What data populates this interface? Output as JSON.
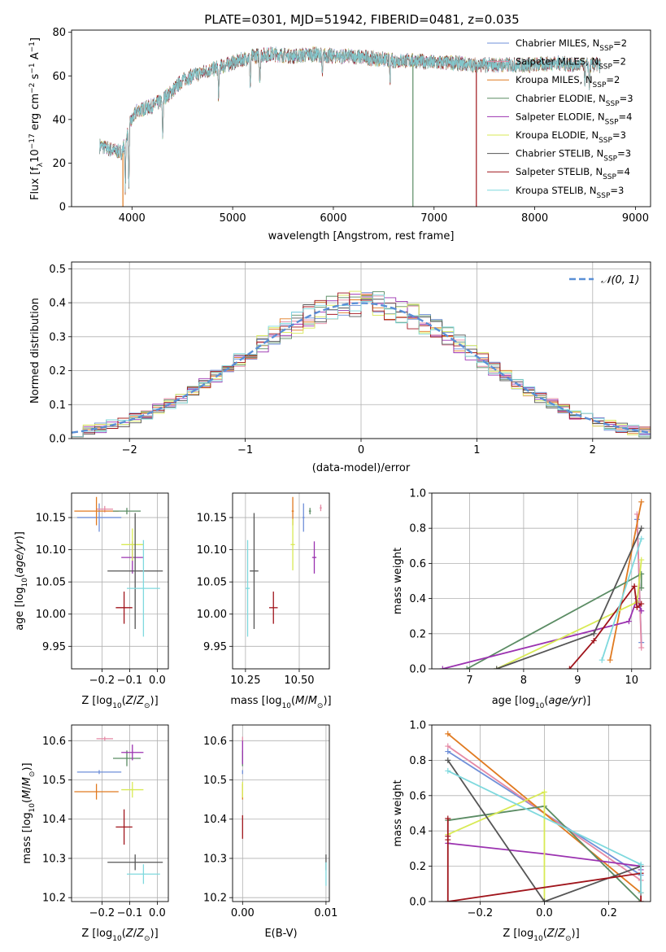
{
  "figure_title": "PLATE=0301, MJD=51942, FIBERID=0481, z=0.035",
  "colors": {
    "grid": "#b0b0b0",
    "normal_curve": "#5a8fd6",
    "models": [
      "#6f8fd8",
      "#e58aa5",
      "#e07a20",
      "#5b8c64",
      "#9b32b0",
      "#d8ea55",
      "#555555",
      "#a0151c",
      "#7fd9de"
    ]
  },
  "chart_data": [
    {
      "id": "spectrum",
      "type": "line",
      "title": "PLATE=0301, MJD=51942, FIBERID=0481, z=0.035",
      "xlabel": "wavelength [Angstrom, rest frame]",
      "ylabel": "Flux [f_λ 10^-17 erg cm^-2 s^-1 A^-1]",
      "xlim": [
        3400,
        9150
      ],
      "ylim": [
        0,
        81
      ],
      "xticks": [
        4000,
        5000,
        6000,
        7000,
        8000,
        9000
      ],
      "yticks": [
        0,
        20,
        40,
        60,
        80
      ],
      "grid": false,
      "legend_position": "top-right",
      "legend": [
        "Chabrier MILES, N_SSP=2",
        "Salpeter MILES, N_SSP=2",
        "Kroupa MILES, N_SSP=2",
        "Chabrier ELODIE, N_SSP=3",
        "Salpeter ELODIE, N_SSP=4",
        "Kroupa ELODIE, N_SSP=3",
        "Chabrier STELIB, N_SSP=3",
        "Salpeter STELIB, N_SSP=4",
        "Kroupa STELIB, N_SSP=3"
      ],
      "wavelength_range": [
        3680,
        8650
      ],
      "continuum": {
        "x": [
          3680,
          3800,
          3900,
          3980,
          4050,
          4200,
          4300,
          4400,
          4500,
          4600,
          4800,
          5000,
          5200,
          5400,
          5600,
          5800,
          6000,
          6200,
          6400,
          6600,
          6800,
          7000,
          7200,
          7400,
          7600,
          7800,
          8000,
          8200,
          8400,
          8650
        ],
        "y": [
          28,
          26,
          25,
          38,
          44,
          46,
          49,
          53,
          58,
          60,
          63,
          66,
          69,
          70,
          69,
          70,
          69,
          69,
          68,
          67,
          67,
          66,
          66,
          65,
          65,
          65,
          65,
          66,
          65,
          65
        ]
      },
      "dips": [
        {
          "x": 3934,
          "y": 8
        },
        {
          "x": 3969,
          "y": 10
        },
        {
          "x": 4305,
          "y": 32
        },
        {
          "x": 4861,
          "y": 50
        },
        {
          "x": 5175,
          "y": 55
        },
        {
          "x": 5270,
          "y": 58
        },
        {
          "x": 5890,
          "y": 60
        },
        {
          "x": 6563,
          "y": 58
        },
        {
          "x": 8498,
          "y": 58
        },
        {
          "x": 8542,
          "y": 56
        },
        {
          "x": 8662,
          "y": 57
        }
      ],
      "model_dropouts": [
        {
          "model": 2,
          "x": 3910,
          "to": 0
        },
        {
          "model": 3,
          "x": 6790,
          "to": 0
        },
        {
          "model": 7,
          "x": 7420,
          "to": 0
        }
      ]
    },
    {
      "id": "residuals",
      "type": "histogram",
      "xlabel": "(data-model)/error",
      "ylabel": "Normed distribution",
      "xlim": [
        -2.5,
        2.5
      ],
      "ylim": [
        0,
        0.52
      ],
      "xticks": [
        -2,
        -1,
        0,
        1,
        2
      ],
      "yticks": [
        0.0,
        0.1,
        0.2,
        0.3,
        0.4,
        0.5
      ],
      "grid": true,
      "legend_position": "top-right",
      "legend": [
        "𝒩(0, 1)"
      ],
      "bin_width": 0.1,
      "curve": "normal(0,1)"
    },
    {
      "id": "age_vs_Z",
      "type": "scatter",
      "xlabel": "Z [log10(Z/Z⊙)]",
      "ylabel": "age [log10(age/yr)]",
      "xlim": [
        -0.31,
        0.04
      ],
      "ylim": [
        9.915,
        10.188
      ],
      "xticks": [
        -0.2,
        -0.1,
        0.0
      ],
      "yticks": [
        9.95,
        10.0,
        10.05,
        10.1,
        10.15
      ],
      "grid": true,
      "points": [
        {
          "model": 0,
          "x": -0.21,
          "xerr": 0.08,
          "y": 10.15,
          "yerr": 0.022
        },
        {
          "model": 1,
          "x": -0.19,
          "xerr": 0.03,
          "y": 10.163,
          "yerr": 0.005
        },
        {
          "model": 2,
          "x": -0.22,
          "xerr": 0.08,
          "y": 10.16,
          "yerr": 0.022
        },
        {
          "model": 3,
          "x": -0.11,
          "xerr": 0.05,
          "y": 10.16,
          "yerr": 0.005
        },
        {
          "model": 4,
          "x": -0.09,
          "xerr": 0.04,
          "y": 10.088,
          "yerr": 0.025
        },
        {
          "model": 5,
          "x": -0.09,
          "xerr": 0.04,
          "y": 10.108,
          "yerr": 0.025
        },
        {
          "model": 6,
          "x": -0.08,
          "xerr": 0.1,
          "y": 10.067,
          "yerr": 0.09
        },
        {
          "model": 7,
          "x": -0.12,
          "xerr": 0.03,
          "y": 10.01,
          "yerr": 0.025
        },
        {
          "model": 8,
          "x": -0.05,
          "xerr": 0.06,
          "y": 10.04,
          "yerr": 0.075
        }
      ]
    },
    {
      "id": "age_vs_mass",
      "type": "scatter",
      "xlabel": "mass [log10(M/M⊙)]",
      "ylabel": "",
      "xlim": [
        10.19,
        10.64
      ],
      "ylim": [
        9.915,
        10.188
      ],
      "xticks": [
        10.25,
        10.5
      ],
      "yticks": [
        9.95,
        10.0,
        10.05,
        10.1,
        10.15
      ],
      "grid": true,
      "points": [
        {
          "model": 0,
          "x": 10.52,
          "xerr": 0.005,
          "y": 10.15,
          "yerr": 0.022
        },
        {
          "model": 1,
          "x": 10.6,
          "xerr": 0.005,
          "y": 10.165,
          "yerr": 0.005
        },
        {
          "model": 2,
          "x": 10.47,
          "xerr": 0.005,
          "y": 10.16,
          "yerr": 0.022
        },
        {
          "model": 3,
          "x": 10.55,
          "xerr": 0.005,
          "y": 10.16,
          "yerr": 0.005
        },
        {
          "model": 4,
          "x": 10.57,
          "xerr": 0.01,
          "y": 10.088,
          "yerr": 0.025
        },
        {
          "model": 5,
          "x": 10.47,
          "xerr": 0.01,
          "y": 10.108,
          "yerr": 0.04
        },
        {
          "model": 6,
          "x": 10.29,
          "xerr": 0.02,
          "y": 10.067,
          "yerr": 0.09
        },
        {
          "model": 7,
          "x": 10.38,
          "xerr": 0.02,
          "y": 10.01,
          "yerr": 0.025
        },
        {
          "model": 8,
          "x": 10.26,
          "xerr": 0.01,
          "y": 10.04,
          "yerr": 0.075
        }
      ]
    },
    {
      "id": "weight_vs_age",
      "type": "line",
      "xlabel": "age [log10(age/yr)]",
      "ylabel": "mass weight",
      "xlim": [
        6.3,
        10.35
      ],
      "ylim": [
        0,
        1.0
      ],
      "xticks": [
        7,
        8,
        9,
        10
      ],
      "yticks": [
        0.0,
        0.2,
        0.4,
        0.6,
        0.8,
        1.0
      ],
      "grid": true,
      "series": [
        {
          "model": 0,
          "x": [
            10.1,
            10.18
          ],
          "y": [
            0.85,
            0.15
          ]
        },
        {
          "model": 1,
          "x": [
            10.1,
            10.18
          ],
          "y": [
            0.88,
            0.12
          ]
        },
        {
          "model": 2,
          "x": [
            9.6,
            10.18
          ],
          "y": [
            0.05,
            0.95
          ]
        },
        {
          "model": 3,
          "x": [
            6.95,
            10.18,
            10.18
          ],
          "y": [
            0.0,
            0.54,
            0.46
          ]
        },
        {
          "model": 4,
          "x": [
            6.5,
            9.95,
            10.1,
            10.18
          ],
          "y": [
            0.0,
            0.27,
            0.4,
            0.33
          ]
        },
        {
          "model": 5,
          "x": [
            7.5,
            10.1,
            10.18
          ],
          "y": [
            0.0,
            0.38,
            0.62
          ]
        },
        {
          "model": 6,
          "x": [
            7.5,
            9.3,
            10.18
          ],
          "y": [
            0.0,
            0.2,
            0.8
          ]
        },
        {
          "model": 7,
          "x": [
            8.85,
            9.3,
            10.05,
            10.1,
            10.18
          ],
          "y": [
            0.0,
            0.16,
            0.47,
            0.35,
            0.37
          ]
        },
        {
          "model": 8,
          "x": [
            9.45,
            10.18
          ],
          "y": [
            0.05,
            0.74
          ]
        }
      ]
    },
    {
      "id": "mass_vs_Z",
      "type": "scatter",
      "xlabel": "Z [log10(Z/Z⊙)]",
      "ylabel": "mass [log10(M/M⊙)]",
      "xlim": [
        -0.31,
        0.04
      ],
      "ylim": [
        10.19,
        10.64
      ],
      "xticks": [
        -0.2,
        -0.1,
        0.0
      ],
      "yticks": [
        10.2,
        10.3,
        10.4,
        10.5,
        10.6
      ],
      "grid": true,
      "points": [
        {
          "model": 0,
          "x": -0.21,
          "xerr": 0.08,
          "y": 10.52,
          "yerr": 0.005
        },
        {
          "model": 1,
          "x": -0.19,
          "xerr": 0.03,
          "y": 10.605,
          "yerr": 0.005
        },
        {
          "model": 2,
          "x": -0.22,
          "xerr": 0.08,
          "y": 10.47,
          "yerr": 0.02
        },
        {
          "model": 3,
          "x": -0.11,
          "xerr": 0.05,
          "y": 10.555,
          "yerr": 0.02
        },
        {
          "model": 4,
          "x": -0.09,
          "xerr": 0.04,
          "y": 10.57,
          "yerr": 0.02
        },
        {
          "model": 5,
          "x": -0.09,
          "xerr": 0.04,
          "y": 10.475,
          "yerr": 0.02
        },
        {
          "model": 6,
          "x": -0.08,
          "xerr": 0.1,
          "y": 10.29,
          "yerr": 0.02
        },
        {
          "model": 7,
          "x": -0.12,
          "xerr": 0.03,
          "y": 10.38,
          "yerr": 0.045
        },
        {
          "model": 8,
          "x": -0.05,
          "xerr": 0.06,
          "y": 10.26,
          "yerr": 0.025
        }
      ]
    },
    {
      "id": "mass_vs_ebv",
      "type": "scatter",
      "xlabel": "E(B-V)",
      "ylabel": "",
      "xlim": [
        -0.0012,
        0.0104
      ],
      "ylim": [
        10.19,
        10.64
      ],
      "xticks": [
        0.0,
        0.01
      ],
      "yticks": [
        10.2,
        10.3,
        10.4,
        10.5,
        10.6
      ],
      "grid": true,
      "points": [
        {
          "model": 0,
          "x": 0.0,
          "y": 10.52,
          "yerr": 0.005
        },
        {
          "model": 1,
          "x": 0.0,
          "y": 10.605,
          "yerr": 0.005
        },
        {
          "model": 2,
          "x": 0.0,
          "y": 10.47,
          "yerr": 0.02
        },
        {
          "model": 3,
          "x": 0.0,
          "y": 10.555,
          "yerr": 0.02
        },
        {
          "model": 4,
          "x": 0.0,
          "y": 10.57,
          "yerr": 0.03
        },
        {
          "model": 5,
          "x": 0.0,
          "y": 10.475,
          "yerr": 0.02
        },
        {
          "model": 6,
          "x": 0.01,
          "y": 10.29,
          "yerr": 0.02
        },
        {
          "model": 7,
          "x": 0.0,
          "y": 10.38,
          "yerr": 0.03
        },
        {
          "model": 8,
          "x": 0.01,
          "y": 10.26,
          "yerr": 0.03
        }
      ]
    },
    {
      "id": "weight_vs_Z",
      "type": "line",
      "xlabel": "Z [log10(Z/Z⊙)]",
      "ylabel": "mass weight",
      "xlim": [
        -0.35,
        0.33
      ],
      "ylim": [
        0,
        1.0
      ],
      "xticks": [
        -0.2,
        0.0,
        0.2
      ],
      "yticks": [
        0.0,
        0.2,
        0.4,
        0.6,
        0.8,
        1.0
      ],
      "grid": true,
      "series": [
        {
          "model": 0,
          "x": [
            -0.3,
            0.3
          ],
          "y": [
            0.85,
            0.15
          ]
        },
        {
          "model": 1,
          "x": [
            -0.3,
            0.3
          ],
          "y": [
            0.88,
            0.12
          ]
        },
        {
          "model": 2,
          "x": [
            -0.3,
            0.3
          ],
          "y": [
            0.95,
            0.05
          ]
        },
        {
          "model": 3,
          "x": [
            -0.3,
            0.0,
            0.3
          ],
          "y": [
            0.46,
            0.54,
            0.0
          ]
        },
        {
          "model": 4,
          "x": [
            -0.3,
            0.0,
            0.3,
            0.3
          ],
          "y": [
            0.33,
            0.27,
            0.2,
            0.18
          ]
        },
        {
          "model": 5,
          "x": [
            -0.3,
            0.0,
            0.0
          ],
          "y": [
            0.38,
            0.62,
            0.0
          ]
        },
        {
          "model": 6,
          "x": [
            -0.3,
            0.0,
            0.3
          ],
          "y": [
            0.8,
            0.0,
            0.2
          ]
        },
        {
          "model": 7,
          "x": [
            -0.3,
            -0.3,
            -0.3,
            -0.3,
            0.3,
            0.3
          ],
          "y": [
            0.47,
            0.37,
            0.35,
            0.0,
            0.16,
            0.0
          ]
        },
        {
          "model": 8,
          "x": [
            -0.3,
            0.3,
            0.3
          ],
          "y": [
            0.74,
            0.21,
            0.05
          ]
        }
      ]
    }
  ]
}
